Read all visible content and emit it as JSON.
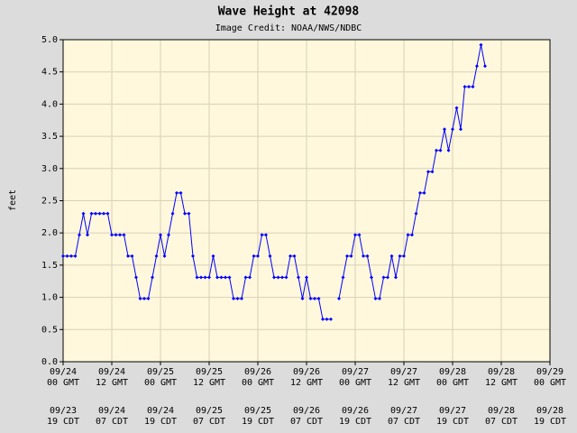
{
  "chart_data": {
    "type": "line",
    "title": "Wave Height at 42098",
    "subtitle": "Image Credit: NOAA/NWS/NDBC",
    "y_label": "feet",
    "grid": true,
    "xlim": [
      "09/24 00",
      "09/29 00"
    ],
    "xticks": [
      {
        "value": "09/24 00",
        "label": [
          "09/24",
          "00 GMT",
          "09/23",
          "19 CDT"
        ]
      },
      {
        "value": "09/24 12",
        "label": [
          "09/24",
          "12 GMT",
          "09/24",
          "07 CDT"
        ]
      },
      {
        "value": "09/25 00",
        "label": [
          "09/25",
          "00 GMT",
          "09/24",
          "19 CDT"
        ]
      },
      {
        "value": "09/25 12",
        "label": [
          "09/25",
          "12 GMT",
          "09/25",
          "07 CDT"
        ]
      },
      {
        "value": "09/26 00",
        "label": [
          "09/26",
          "00 GMT",
          "09/25",
          "19 CDT"
        ]
      },
      {
        "value": "09/26 12",
        "label": [
          "09/26",
          "12 GMT",
          "09/26",
          "07 CDT"
        ]
      },
      {
        "value": "09/27 00",
        "label": [
          "09/27",
          "00 GMT",
          "09/26",
          "19 CDT"
        ]
      },
      {
        "value": "09/27 12",
        "label": [
          "09/27",
          "12 GMT",
          "09/27",
          "07 CDT"
        ]
      },
      {
        "value": "09/28 00",
        "label": [
          "09/28",
          "00 GMT",
          "09/27",
          "19 CDT"
        ]
      },
      {
        "value": "09/28 12",
        "label": [
          "09/28",
          "12 GMT",
          "09/28",
          "07 CDT"
        ]
      },
      {
        "value": "09/29 00",
        "label": [
          "09/29",
          "00 GMT",
          "09/28",
          "19 CDT"
        ]
      }
    ],
    "ylim": [
      0,
      5
    ],
    "yticks": [
      {
        "value": 0,
        "label": "0.0"
      },
      {
        "value": 0.5,
        "label": "0.5"
      },
      {
        "value": 1,
        "label": "1.0"
      },
      {
        "value": 1.5,
        "label": "1.5"
      },
      {
        "value": 2,
        "label": "2.0"
      },
      {
        "value": 2.5,
        "label": "2.5"
      },
      {
        "value": 3,
        "label": "3.0"
      },
      {
        "value": 3.5,
        "label": "3.5"
      },
      {
        "value": 4,
        "label": "4.0"
      },
      {
        "value": 4.5,
        "label": "4.5"
      },
      {
        "value": 5,
        "label": "5.0"
      }
    ],
    "x": [
      "09/24 00",
      "09/24 01",
      "09/24 02",
      "09/24 03",
      "09/24 04",
      "09/24 05",
      "09/24 06",
      "09/24 07",
      "09/24 08",
      "09/24 09",
      "09/24 10",
      "09/24 11",
      "09/24 12",
      "09/24 13",
      "09/24 14",
      "09/24 15",
      "09/24 16",
      "09/24 17",
      "09/24 18",
      "09/24 19",
      "09/24 20",
      "09/24 21",
      "09/24 22",
      "09/24 23",
      "09/25 00",
      "09/25 01",
      "09/25 02",
      "09/25 03",
      "09/25 04",
      "09/25 05",
      "09/25 06",
      "09/25 07",
      "09/25 08",
      "09/25 09",
      "09/25 10",
      "09/25 11",
      "09/25 12",
      "09/25 13",
      "09/25 14",
      "09/25 15",
      "09/25 16",
      "09/25 17",
      "09/25 18",
      "09/25 19",
      "09/25 20",
      "09/25 21",
      "09/25 22",
      "09/25 23",
      "09/26 00",
      "09/26 01",
      "09/26 02",
      "09/26 03",
      "09/26 04",
      "09/26 05",
      "09/26 06",
      "09/26 07",
      "09/26 08",
      "09/26 09",
      "09/26 10",
      "09/26 11",
      "09/26 12",
      "09/26 13",
      "09/26 14",
      "09/26 15",
      "09/26 16",
      "09/26 17",
      "09/26 18",
      "09/26 19",
      "09/26 20",
      "09/26 21",
      "09/26 22",
      "09/26 23",
      "09/27 00",
      "09/27 01",
      "09/27 02",
      "09/27 03",
      "09/27 04",
      "09/27 05",
      "09/27 06",
      "09/27 07",
      "09/27 08",
      "09/27 09",
      "09/27 10",
      "09/27 11",
      "09/27 12",
      "09/27 13",
      "09/27 14",
      "09/27 15",
      "09/27 16",
      "09/27 17",
      "09/27 18",
      "09/27 19",
      "09/27 20",
      "09/27 21",
      "09/27 22",
      "09/27 23",
      "09/28 00",
      "09/28 01",
      "09/28 02",
      "09/28 03",
      "09/28 04",
      "09/28 05",
      "09/28 06",
      "09/28 07",
      "09/28 08"
    ],
    "series": [
      {
        "name": "Wave Height",
        "color": "#0000ff",
        "values": [
          1.64,
          1.64,
          1.64,
          1.64,
          1.97,
          2.3,
          1.97,
          2.3,
          2.3,
          2.3,
          2.3,
          2.3,
          1.97,
          1.97,
          1.97,
          1.97,
          1.64,
          1.64,
          1.31,
          0.98,
          0.98,
          0.98,
          1.31,
          1.64,
          1.97,
          1.64,
          1.97,
          2.3,
          2.62,
          2.62,
          2.3,
          2.3,
          1.64,
          1.31,
          1.31,
          1.31,
          1.31,
          1.64,
          1.31,
          1.31,
          1.31,
          1.31,
          0.98,
          0.98,
          0.98,
          1.31,
          1.31,
          1.64,
          1.64,
          1.97,
          1.97,
          1.64,
          1.31,
          1.31,
          1.31,
          1.31,
          1.64,
          1.64,
          1.31,
          0.98,
          1.31,
          0.98,
          0.98,
          0.98,
          0.66,
          0.66,
          0.66,
          null,
          0.98,
          1.31,
          1.64,
          1.64,
          1.97,
          1.97,
          1.64,
          1.64,
          1.31,
          0.98,
          0.98,
          1.31,
          1.31,
          1.64,
          1.31,
          1.64,
          1.64,
          1.97,
          1.97,
          2.3,
          2.62,
          2.62,
          2.95,
          2.95,
          3.28,
          3.28,
          3.61,
          3.28,
          3.61,
          3.94,
          3.61,
          4.27,
          4.27,
          4.27,
          4.59,
          4.92,
          4.59
        ]
      }
    ]
  }
}
